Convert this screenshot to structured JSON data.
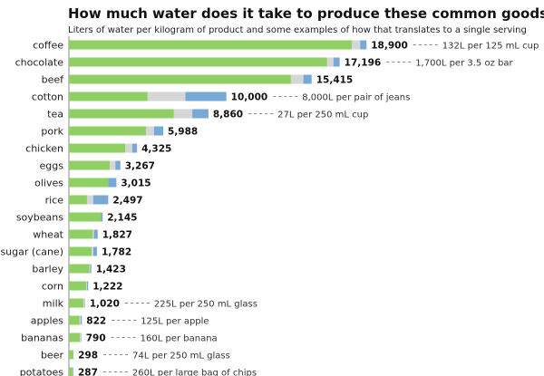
{
  "chart_data": {
    "type": "bar",
    "orientation": "horizontal",
    "stacked": true,
    "title": "How much water does it take to produce these common goods?",
    "subtitle": "Liters of water per kilogram of product and some examples of how that translates to a single serving",
    "colors": {
      "green": "#8fcf63",
      "gray": "#d6d6d6",
      "blue": "#78a9d6"
    },
    "categories": [
      "coffee",
      "chocolate",
      "beef",
      "cotton",
      "tea",
      "pork",
      "chicken",
      "eggs",
      "olives",
      "rice",
      "soybeans",
      "wheat",
      "sugar (cane)",
      "barley",
      "corn",
      "milk",
      "apples",
      "bananas",
      "beer",
      "potatoes"
    ],
    "totals": [
      18900,
      17196,
      15415,
      10000,
      8860,
      5988,
      4325,
      3267,
      3015,
      2497,
      2145,
      1827,
      1782,
      1423,
      1222,
      1020,
      822,
      790,
      298,
      287
    ],
    "total_labels": [
      "18,900",
      "17,196",
      "15,415",
      "10,000",
      "8,860",
      "5,988",
      "4,325",
      "3,267",
      "3,015",
      "2,497",
      "2,145",
      "1,827",
      "1,782",
      "1,423",
      "1,222",
      "1,020",
      "822",
      "790",
      "298",
      "287"
    ],
    "series": [
      {
        "color_key": "green",
        "values": [
          17960,
          16400,
          14100,
          5000,
          6670,
          4900,
          3570,
          2600,
          2500,
          1150,
          2040,
          1520,
          1450,
          1300,
          1100,
          920,
          680,
          700,
          280,
          220
        ]
      },
      {
        "color_key": "gray",
        "values": [
          540,
          400,
          790,
          2400,
          1170,
          500,
          450,
          350,
          0,
          400,
          0,
          70,
          100,
          50,
          50,
          70,
          70,
          60,
          6,
          25
        ]
      },
      {
        "color_key": "blue",
        "values": [
          400,
          396,
          525,
          2600,
          1020,
          588,
          305,
          317,
          515,
          947,
          105,
          237,
          232,
          73,
          72,
          30,
          72,
          30,
          12,
          42
        ]
      }
    ],
    "annotations": [
      {
        "category": "coffee",
        "text": "132L per 125 mL cup"
      },
      {
        "category": "chocolate",
        "text": "1,700L per 3.5 oz bar"
      },
      {
        "category": "cotton",
        "text": "8,000L per pair of jeans"
      },
      {
        "category": "tea",
        "text": "27L per 250 mL cup"
      },
      {
        "category": "milk",
        "text": "225L per 250 mL glass"
      },
      {
        "category": "apples",
        "text": "125L per apple"
      },
      {
        "category": "bananas",
        "text": "160L per banana"
      },
      {
        "category": "beer",
        "text": "74L per 250 mL glass"
      },
      {
        "category": "potatoes",
        "text": "260L per large bag of chips"
      }
    ],
    "xlim": [
      0,
      19000
    ],
    "grid": false,
    "legend": "none"
  }
}
